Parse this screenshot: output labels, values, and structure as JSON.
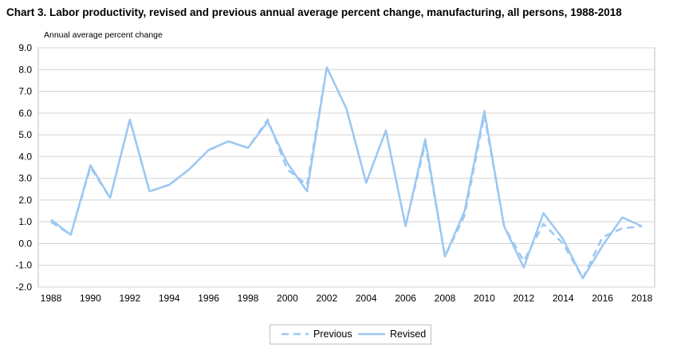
{
  "title": "Chart 3. Labor productivity, revised and previous annual average percent change, manufacturing, all persons, 1988-2018",
  "chart_data": {
    "type": "line",
    "title": "Chart 3. Labor productivity, revised and previous annual average percent change, manufacturing, all persons, 1988-2018",
    "ylabel": "Annual average percent change",
    "xlabel": "",
    "ylim": [
      -2.0,
      9.0
    ],
    "yticks": [
      "9.0",
      "8.0",
      "7.0",
      "6.0",
      "5.0",
      "4.0",
      "3.0",
      "2.0",
      "1.0",
      "0.0",
      "-1.0",
      "-2.0"
    ],
    "xticks": [
      "1988",
      "1990",
      "1992",
      "1994",
      "1996",
      "1998",
      "2000",
      "2002",
      "2004",
      "2006",
      "2008",
      "2010",
      "2012",
      "2014",
      "2016",
      "2018"
    ],
    "grid": true,
    "legend_position": "bottom",
    "x": [
      1988,
      1989,
      1990,
      1991,
      1992,
      1993,
      1994,
      1995,
      1996,
      1997,
      1998,
      1999,
      2000,
      2001,
      2002,
      2003,
      2004,
      2005,
      2006,
      2007,
      2008,
      2009,
      2010,
      2011,
      2012,
      2013,
      2014,
      2015,
      2016,
      2017,
      2018
    ],
    "series": [
      {
        "name": "Previous",
        "style": "dashed",
        "color": "#9cc8f2",
        "values": [
          1.0,
          0.4,
          3.5,
          2.1,
          5.7,
          2.4,
          2.7,
          3.4,
          4.3,
          4.7,
          4.4,
          5.7,
          3.4,
          2.7,
          8.1,
          6.2,
          2.8,
          5.2,
          0.8,
          4.6,
          -0.6,
          1.3,
          5.9,
          0.8,
          -0.8,
          0.9,
          0.0,
          -1.6,
          0.3,
          0.7,
          0.8
        ]
      },
      {
        "name": "Revised",
        "style": "solid",
        "color": "#9cc8f2",
        "values": [
          1.1,
          0.4,
          3.6,
          2.1,
          5.7,
          2.4,
          2.7,
          3.4,
          4.3,
          4.7,
          4.4,
          5.6,
          3.7,
          2.4,
          8.1,
          6.2,
          2.8,
          5.2,
          0.8,
          4.8,
          -0.6,
          1.5,
          6.1,
          0.8,
          -1.1,
          1.4,
          0.2,
          -1.6,
          -0.1,
          1.2,
          0.8
        ]
      }
    ]
  }
}
